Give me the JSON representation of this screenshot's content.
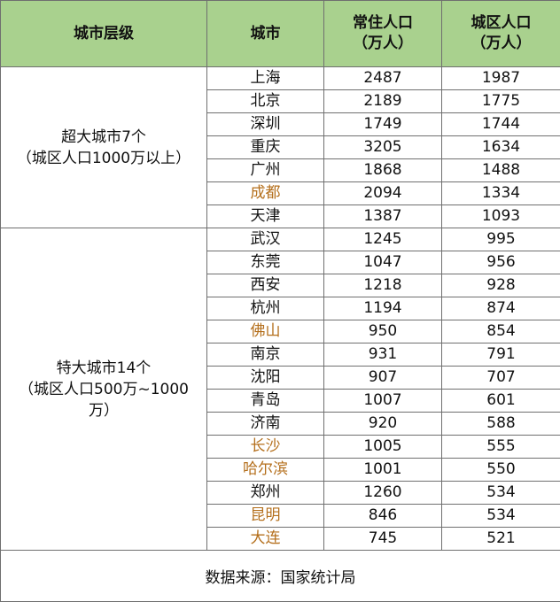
{
  "headers": {
    "tier": "城市层级",
    "city": "城市",
    "resident_line1": "常住人口",
    "resident_line2": "（万人）",
    "urban_line1": "城区人口",
    "urban_line2": "（万人）"
  },
  "colors": {
    "header_bg": "#a9d18e",
    "highlight_text": "#b46f1c",
    "border": "#6f6f6f"
  },
  "groups": [
    {
      "label_lines": [
        "超大城市7个",
        "（城区人口1000万以上）"
      ],
      "rows": [
        {
          "city": "上海",
          "resident": "2487",
          "urban": "1987",
          "highlight": false
        },
        {
          "city": "北京",
          "resident": "2189",
          "urban": "1775",
          "highlight": false
        },
        {
          "city": "深圳",
          "resident": "1749",
          "urban": "1744",
          "highlight": false
        },
        {
          "city": "重庆",
          "resident": "3205",
          "urban": "1634",
          "highlight": false
        },
        {
          "city": "广州",
          "resident": "1868",
          "urban": "1488",
          "highlight": false
        },
        {
          "city": "成都",
          "resident": "2094",
          "urban": "1334",
          "highlight": true
        },
        {
          "city": "天津",
          "resident": "1387",
          "urban": "1093",
          "highlight": false
        }
      ]
    },
    {
      "label_lines": [
        "特大城市14个",
        "（城区人口500万~1000",
        "万）"
      ],
      "rows": [
        {
          "city": "武汉",
          "resident": "1245",
          "urban": "995",
          "highlight": false
        },
        {
          "city": "东莞",
          "resident": "1047",
          "urban": "956",
          "highlight": false
        },
        {
          "city": "西安",
          "resident": "1218",
          "urban": "928",
          "highlight": false
        },
        {
          "city": "杭州",
          "resident": "1194",
          "urban": "874",
          "highlight": false
        },
        {
          "city": "佛山",
          "resident": "950",
          "urban": "854",
          "highlight": true
        },
        {
          "city": "南京",
          "resident": "931",
          "urban": "791",
          "highlight": false
        },
        {
          "city": "沈阳",
          "resident": "907",
          "urban": "707",
          "highlight": false
        },
        {
          "city": "青岛",
          "resident": "1007",
          "urban": "601",
          "highlight": false
        },
        {
          "city": "济南",
          "resident": "920",
          "urban": "588",
          "highlight": false
        },
        {
          "city": "长沙",
          "resident": "1005",
          "urban": "555",
          "highlight": true
        },
        {
          "city": "哈尔滨",
          "resident": "1001",
          "urban": "550",
          "highlight": true
        },
        {
          "city": "郑州",
          "resident": "1260",
          "urban": "534",
          "highlight": false
        },
        {
          "city": "昆明",
          "resident": "846",
          "urban": "534",
          "highlight": true
        },
        {
          "city": "大连",
          "resident": "745",
          "urban": "521",
          "highlight": true
        }
      ]
    }
  ],
  "footer": {
    "source": "数据来源：国家统计局"
  }
}
